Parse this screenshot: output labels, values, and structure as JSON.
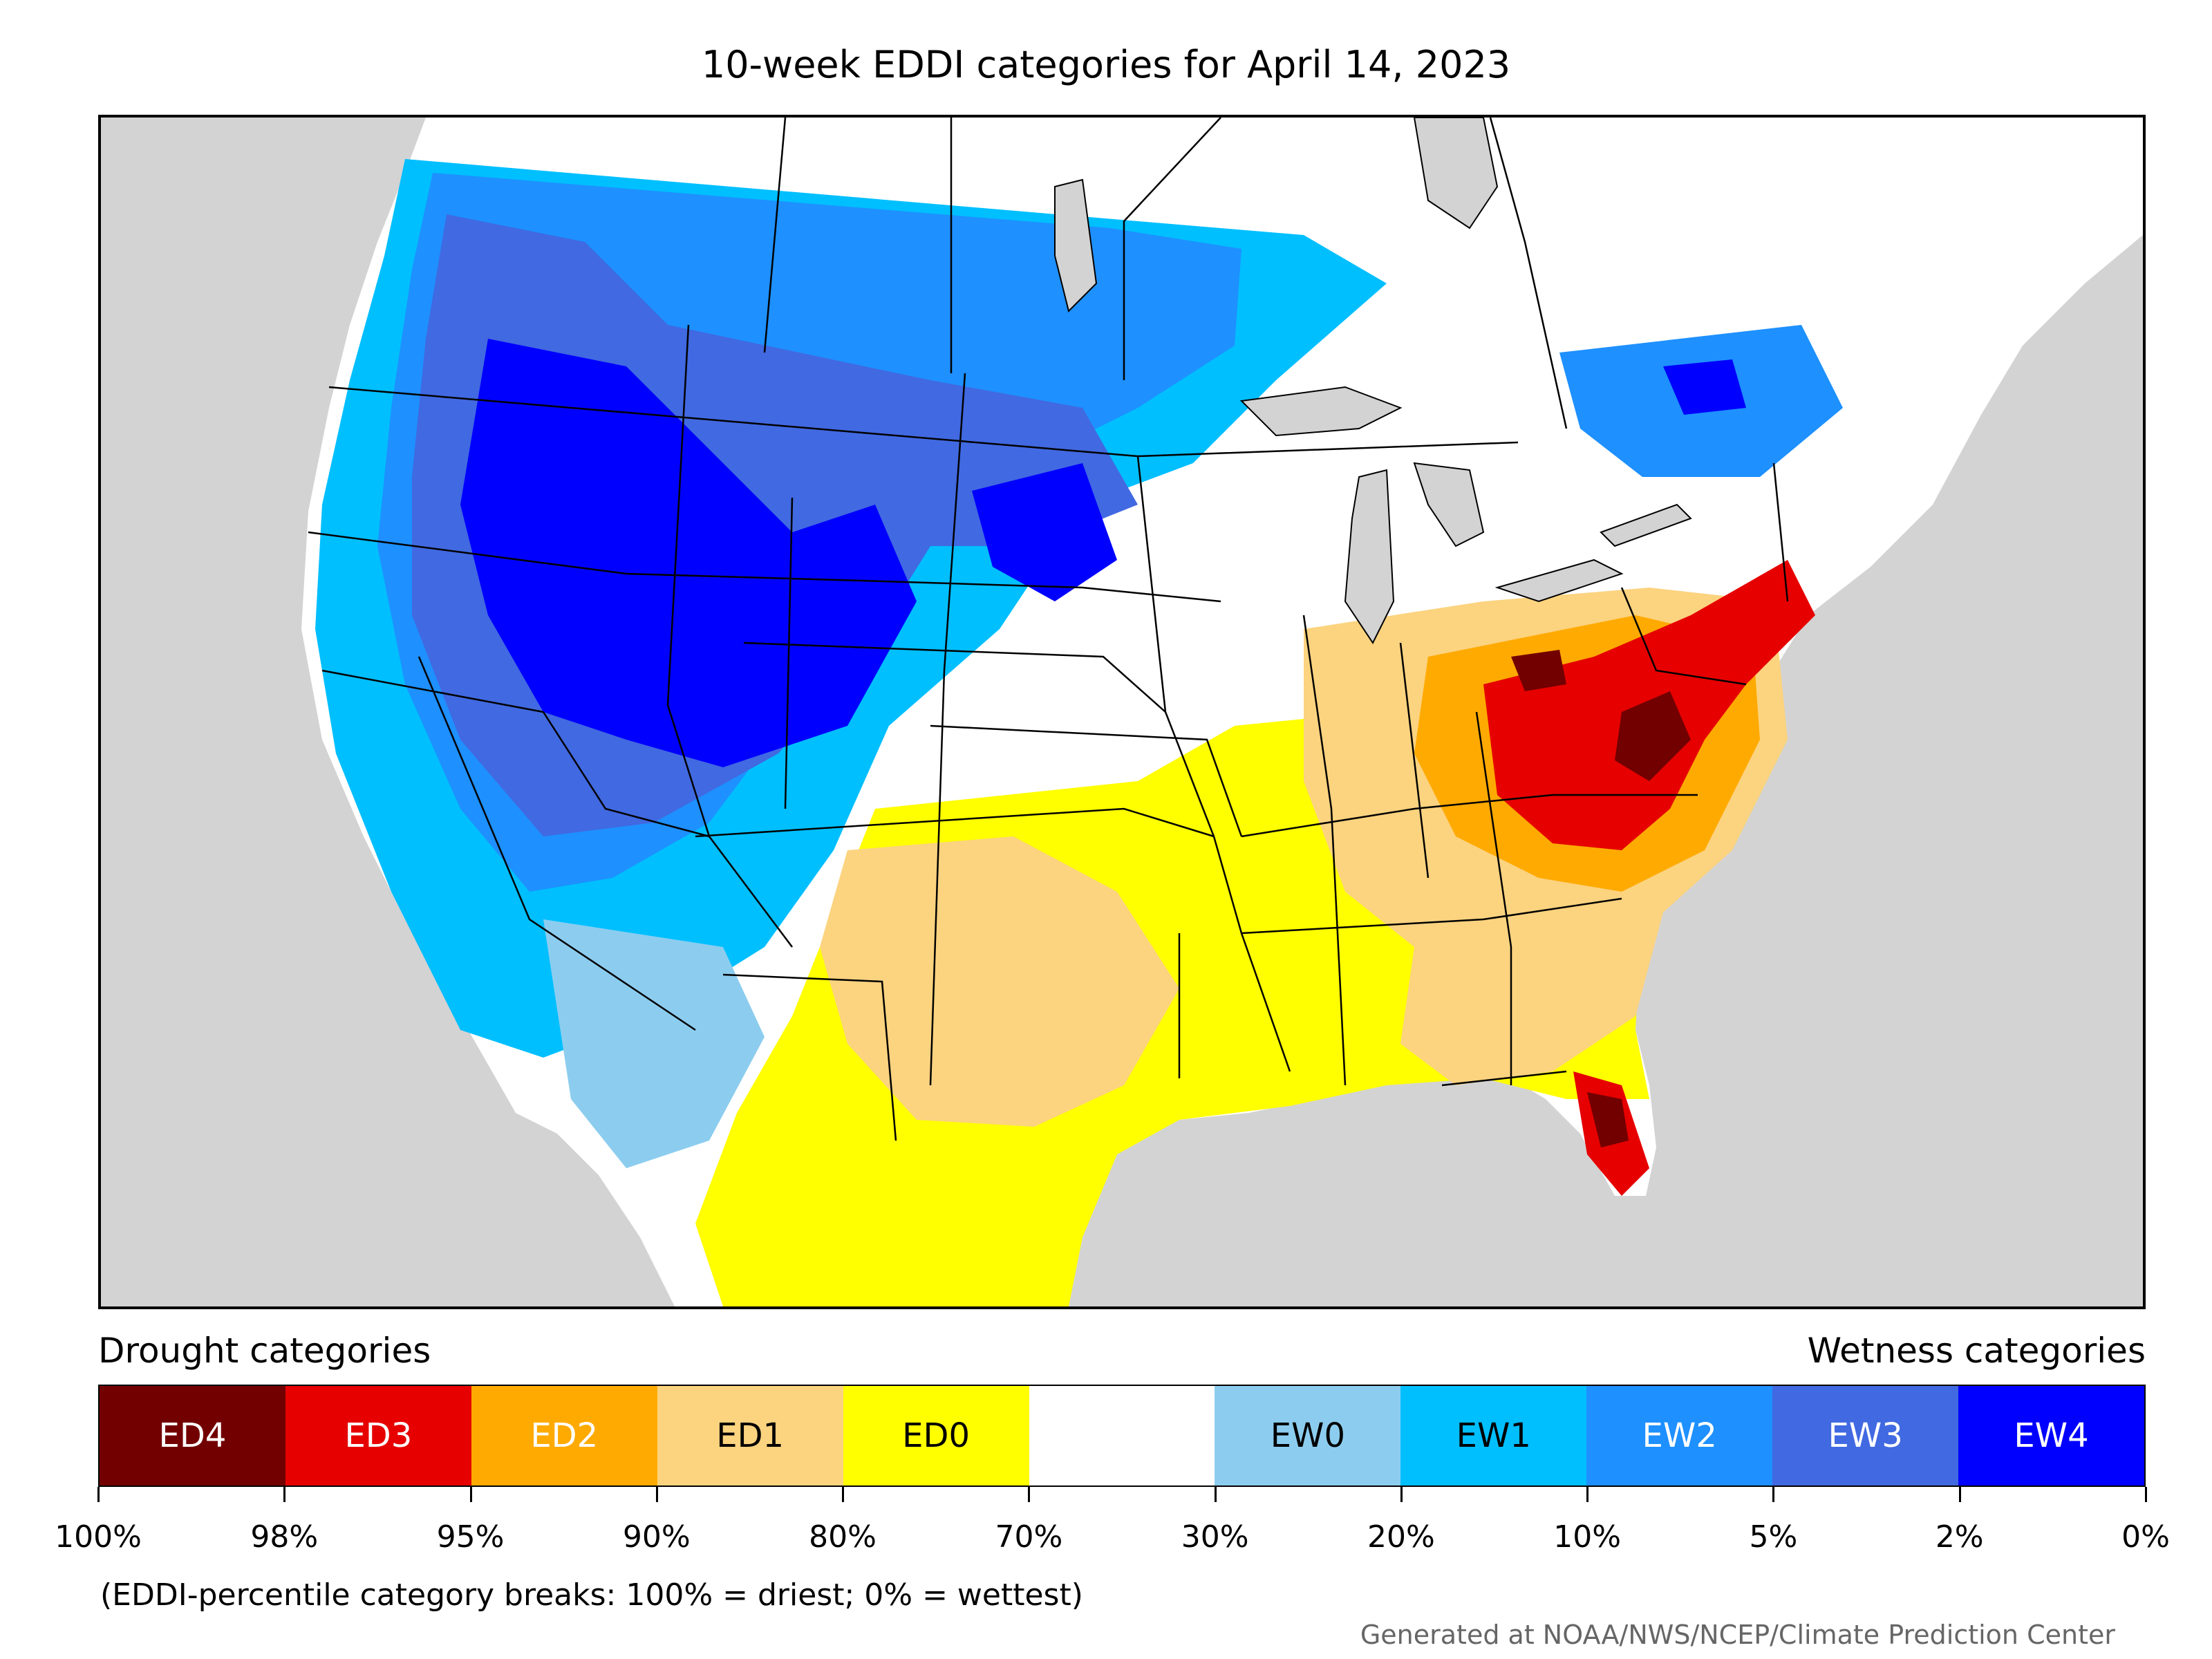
{
  "title": "10-week EDDI categories for April 14, 2023",
  "legend": {
    "drought_heading": "Drought categories",
    "wetness_heading": "Wetness categories",
    "categories": [
      {
        "label": "ED4",
        "color": "#730000",
        "text_color": "#ffffff"
      },
      {
        "label": "ED3",
        "color": "#e60000",
        "text_color": "#ffffff"
      },
      {
        "label": "ED2",
        "color": "#ffaa00",
        "text_color": "#ffffff"
      },
      {
        "label": "ED1",
        "color": "#fcd37f",
        "text_color": "#000000"
      },
      {
        "label": "ED0",
        "color": "#ffff00",
        "text_color": "#000000"
      },
      {
        "label": "",
        "color": "#ffffff",
        "text_color": "#000000"
      },
      {
        "label": "EW0",
        "color": "#8ccdef",
        "text_color": "#000000"
      },
      {
        "label": "EW1",
        "color": "#00bfff",
        "text_color": "#000000"
      },
      {
        "label": "EW2",
        "color": "#1e90ff",
        "text_color": "#ffffff"
      },
      {
        "label": "EW3",
        "color": "#4169e1",
        "text_color": "#ffffff"
      },
      {
        "label": "EW4",
        "color": "#0000ff",
        "text_color": "#ffffff"
      }
    ],
    "tick_labels": [
      "100%",
      "98%",
      "95%",
      "90%",
      "80%",
      "70%",
      "30%",
      "20%",
      "10%",
      "5%",
      "2%",
      "0%"
    ]
  },
  "note": "(EDDI-percentile category breaks: 100% = driest; 0% = wettest)",
  "credit": "Generated at NOAA/NWS/NCEP/Climate Prediction Center",
  "map": {
    "ocean_color": "#d3d3d3",
    "land_color": "#ffffff",
    "lake_color": "#d3d3d3",
    "border_color": "#000000"
  }
}
